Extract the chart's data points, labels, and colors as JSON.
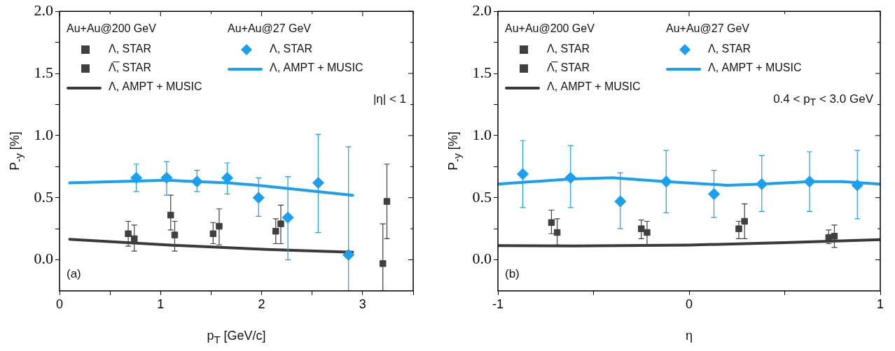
{
  "chart_data": [
    {
      "type": "scatter",
      "xlabel": "p$_{T}$ [GeV/c]",
      "ylabel": "P$_{-y}$ [%]",
      "xlim": [
        0,
        3.5
      ],
      "xticks": [
        0,
        {
          "value": 0.5,
          "label": null
        },
        1,
        {
          "value": 1.5,
          "label": null
        },
        2,
        {
          "value": 2.5,
          "label": null
        },
        3,
        {
          "value": 3.5,
          "label": null
        }
      ],
      "ylim": [
        -0.25,
        2.0
      ],
      "yticks": [
        {
          "value": 0,
          "label": "0.0"
        },
        {
          "value": 0.25,
          "label": null
        },
        {
          "value": 0.5,
          "label": "0.5"
        },
        {
          "value": 0.75,
          "label": null
        },
        {
          "value": 1,
          "label": "1.0"
        },
        {
          "value": 1.25,
          "label": null
        },
        {
          "value": 1.5,
          "label": "1.5"
        },
        {
          "value": 1.75,
          "label": null
        },
        {
          "value": 2,
          "label": "2.0"
        }
      ],
      "grid": false,
      "legend": "top left",
      "annotations": [
        "Au+Au@200 GeV",
        "Au+Au@27 GeV",
        "|η| < 1",
        "(a)"
      ],
      "series": [
        {
          "name": "Λ, STAR",
          "type": "scatter",
          "marker": "square",
          "color": "#404040",
          "x": [
            0.68,
            1.1,
            1.52,
            2.14,
            3.2
          ],
          "values": [
            0.21,
            0.36,
            0.21,
            0.23,
            -0.03
          ],
          "errors": [
            [
              0.11,
              0.31
            ],
            [
              0.24,
              0.52
            ],
            [
              0.13,
              0.3
            ],
            [
              0.13,
              0.33
            ],
            [
              -0.25,
              0.29
            ]
          ]
        },
        {
          "name": "Λ̅, STAR",
          "type": "scatter",
          "marker": "square",
          "color": "#404040",
          "x": [
            0.74,
            1.14,
            1.58,
            2.19,
            3.24
          ],
          "values": [
            0.17,
            0.2,
            0.27,
            0.29,
            0.47
          ],
          "errors": [
            [
              0.07,
              0.28
            ],
            [
              0.07,
              0.31
            ],
            [
              0.12,
              0.41
            ],
            [
              0.13,
              0.44
            ],
            [
              0.17,
              0.77
            ]
          ]
        },
        {
          "name": "Λ, AMPT + MUSIC",
          "type": "line",
          "marker": "none",
          "color": "#3a3a3a",
          "x": [
            0.1,
            1.12,
            2.05,
            2.9
          ],
          "values": [
            0.165,
            0.117,
            0.084,
            0.061
          ]
        },
        {
          "name": "Λ, STAR",
          "type": "scatter",
          "marker": "diamond",
          "color": "#1aa0f0",
          "x": [
            0.76,
            1.06,
            1.36,
            1.66,
            1.97,
            2.26,
            2.56,
            2.86
          ],
          "values": [
            0.66,
            0.66,
            0.63,
            0.66,
            0.5,
            0.34,
            0.62,
            0.04
          ],
          "errors": [
            [
              0.55,
              0.77
            ],
            [
              0.52,
              0.79
            ],
            [
              0.55,
              0.72
            ],
            [
              0.53,
              0.78
            ],
            [
              0.35,
              0.66
            ],
            [
              0.0,
              0.67
            ],
            [
              0.22,
              1.01
            ],
            [
              -0.25,
              0.91
            ]
          ]
        },
        {
          "name": "Λ, AMPT + MUSIC",
          "type": "line",
          "marker": "none",
          "color": "#1aa0f0",
          "x": [
            0.1,
            1.06,
            1.36,
            1.66,
            1.96,
            2.9
          ],
          "values": [
            0.62,
            0.64,
            0.63,
            0.62,
            0.6,
            0.52
          ]
        }
      ]
    },
    {
      "type": "scatter",
      "xlabel": "η",
      "ylabel": "P$_{-y}$ [%]",
      "xlim": [
        -1,
        1
      ],
      "xticks": [
        -1,
        {
          "value": -0.5,
          "label": null
        },
        0,
        {
          "value": 0.5,
          "label": null
        },
        1
      ],
      "ylim": [
        -0.25,
        2.0
      ],
      "yticks": [
        {
          "value": 0,
          "label": "0.0"
        },
        {
          "value": 0.25,
          "label": null
        },
        {
          "value": 0.5,
          "label": "0.5"
        },
        {
          "value": 0.75,
          "label": null
        },
        {
          "value": 1,
          "label": "1.0"
        },
        {
          "value": 1.25,
          "label": null
        },
        {
          "value": 1.5,
          "label": "1.5"
        },
        {
          "value": 1.75,
          "label": null
        },
        {
          "value": 2,
          "label": "2.0"
        }
      ],
      "grid": false,
      "legend": "top left",
      "annotations": [
        "Au+Au@200 GeV",
        "Au+Au@27 GeV",
        "0.4 < p$_{T}$ < 3.0 GeV",
        "(b)"
      ],
      "series": [
        {
          "name": "Λ, STAR",
          "type": "scatter",
          "marker": "square",
          "color": "#404040",
          "x": [
            -0.72,
            -0.25,
            0.26,
            0.73
          ],
          "values": [
            0.3,
            0.25,
            0.25,
            0.18
          ],
          "errors": [
            [
              0.21,
              0.4
            ],
            [
              0.17,
              0.32
            ],
            [
              0.17,
              0.31
            ],
            [
              0.13,
              0.24
            ]
          ]
        },
        {
          "name": "Λ̅, STAR",
          "type": "scatter",
          "marker": "square",
          "color": "#404040",
          "x": [
            -0.69,
            -0.22,
            0.29,
            0.76
          ],
          "values": [
            0.22,
            0.22,
            0.31,
            0.19
          ],
          "errors": [
            [
              0.12,
              0.33
            ],
            [
              0.12,
              0.31
            ],
            [
              0.17,
              0.45
            ],
            [
              0.1,
              0.28
            ]
          ]
        },
        {
          "name": "Λ, AMPT + MUSIC",
          "type": "line",
          "marker": "none",
          "color": "#3a3a3a",
          "x": [
            -1,
            -0.6,
            0,
            0.5,
            1
          ],
          "values": [
            0.115,
            0.111,
            0.119,
            0.138,
            0.162
          ]
        },
        {
          "name": "Λ, STAR",
          "type": "scatter",
          "marker": "diamond",
          "color": "#1aa0f0",
          "x": [
            -0.87,
            -0.62,
            -0.36,
            -0.12,
            0.13,
            0.38,
            0.63,
            0.88
          ],
          "values": [
            0.69,
            0.66,
            0.47,
            0.63,
            0.53,
            0.61,
            0.63,
            0.6
          ],
          "errors": [
            [
              0.42,
              0.96
            ],
            [
              0.42,
              0.92
            ],
            [
              0.25,
              0.7
            ],
            [
              0.38,
              0.88
            ],
            [
              0.34,
              0.72
            ],
            [
              0.39,
              0.84
            ],
            [
              0.39,
              0.87
            ],
            [
              0.33,
              0.88
            ]
          ]
        },
        {
          "name": "Λ, AMPT + MUSIC",
          "type": "line",
          "marker": "none",
          "color": "#1aa0f0",
          "x": [
            -1,
            -0.62,
            -0.4,
            -0.12,
            0.2,
            0.38,
            0.63,
            0.8,
            1
          ],
          "values": [
            0.61,
            0.65,
            0.66,
            0.63,
            0.6,
            0.61,
            0.63,
            0.63,
            0.61
          ]
        }
      ]
    }
  ]
}
